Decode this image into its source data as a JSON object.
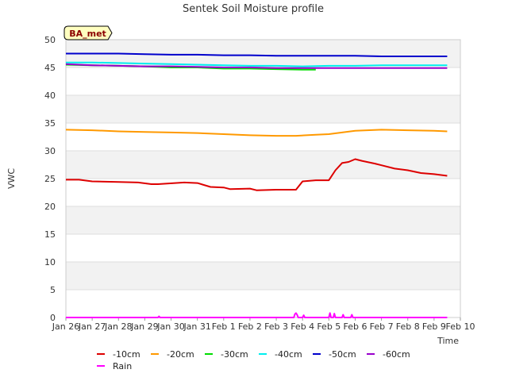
{
  "chart_data": {
    "type": "line",
    "title": "Sentek Soil Moisture profile",
    "badge": "BA_met",
    "xlabel": "Time",
    "ylabel": "VWC",
    "ylim": [
      0,
      50
    ],
    "yticks": [
      0,
      5,
      10,
      15,
      20,
      25,
      30,
      35,
      40,
      45,
      50
    ],
    "xlim": [
      "2024-01-26",
      "2024-02-10"
    ],
    "xtick_labels": [
      "Jan 26",
      "Jan 27",
      "Jan 28",
      "Jan 29",
      "Jan 30",
      "Jan 31",
      "Feb 1",
      "Feb 2",
      "Feb 3",
      "Feb 4",
      "Feb 5",
      "Feb 6",
      "Feb 7",
      "Feb 8",
      "Feb 9",
      "Feb 10"
    ],
    "grid": true,
    "legend_position": "bottom",
    "series": [
      {
        "name": "-10cm",
        "color": "#dd0000",
        "x": [
          "2024-01-26",
          "2024-01-26 12:00",
          "2024-01-27",
          "2024-01-28",
          "2024-01-28 18:00",
          "2024-01-29 06:00",
          "2024-01-29 12:00",
          "2024-01-30 12:00",
          "2024-01-31",
          "2024-01-31 12:00",
          "2024-02-01",
          "2024-02-01 06:00",
          "2024-02-02",
          "2024-02-02 06:00",
          "2024-02-03",
          "2024-02-03 18:00",
          "2024-02-04",
          "2024-02-04 12:00",
          "2024-02-05",
          "2024-02-05 06:00",
          "2024-02-05 12:00",
          "2024-02-05 18:00",
          "2024-02-06",
          "2024-02-06 06:00",
          "2024-02-06 18:00",
          "2024-02-07",
          "2024-02-07 12:00",
          "2024-02-08",
          "2024-02-08 12:00",
          "2024-02-09",
          "2024-02-09 12:00"
        ],
        "y": [
          24.8,
          24.8,
          24.5,
          24.4,
          24.3,
          24.0,
          24.0,
          24.3,
          24.2,
          23.5,
          23.4,
          23.1,
          23.2,
          22.9,
          23.0,
          23.0,
          24.5,
          24.7,
          24.7,
          26.5,
          27.8,
          28.0,
          28.5,
          28.2,
          27.7,
          27.4,
          26.8,
          26.5,
          26.0,
          25.8,
          25.5
        ]
      },
      {
        "name": "-20cm",
        "color": "#ff9900",
        "x": [
          "2024-01-26",
          "2024-01-27",
          "2024-01-28",
          "2024-01-29",
          "2024-01-30",
          "2024-01-31",
          "2024-02-01",
          "2024-02-02",
          "2024-02-03",
          "2024-02-03 18:00",
          "2024-02-04 12:00",
          "2024-02-05",
          "2024-02-05 12:00",
          "2024-02-06",
          "2024-02-07",
          "2024-02-08",
          "2024-02-09",
          "2024-02-09 12:00"
        ],
        "y": [
          33.8,
          33.7,
          33.5,
          33.4,
          33.3,
          33.2,
          33.0,
          32.8,
          32.7,
          32.7,
          32.9,
          33.0,
          33.3,
          33.6,
          33.8,
          33.7,
          33.6,
          33.5
        ]
      },
      {
        "name": "-30cm",
        "color": "#00dd00",
        "x": [
          "2024-01-26",
          "2024-01-27",
          "2024-01-28",
          "2024-01-29",
          "2024-01-30",
          "2024-01-31",
          "2024-02-01",
          "2024-02-02",
          "2024-02-03",
          "2024-02-04",
          "2024-02-04 12:00"
        ],
        "y": [
          45.5,
          45.4,
          45.3,
          45.2,
          45.0,
          45.0,
          44.8,
          44.8,
          44.7,
          44.6,
          44.6
        ]
      },
      {
        "name": "-40cm",
        "color": "#00eeee",
        "x": [
          "2024-01-26",
          "2024-01-27",
          "2024-01-28",
          "2024-01-29",
          "2024-01-30",
          "2024-01-31",
          "2024-02-01",
          "2024-02-02",
          "2024-02-03",
          "2024-02-04",
          "2024-02-05",
          "2024-02-06",
          "2024-02-07",
          "2024-02-08",
          "2024-02-09",
          "2024-02-09 12:00"
        ],
        "y": [
          45.9,
          45.9,
          45.8,
          45.7,
          45.6,
          45.5,
          45.4,
          45.3,
          45.3,
          45.2,
          45.3,
          45.3,
          45.4,
          45.4,
          45.4,
          45.4
        ]
      },
      {
        "name": "-50cm",
        "color": "#0000cc",
        "x": [
          "2024-01-26",
          "2024-01-27",
          "2024-01-28",
          "2024-01-29",
          "2024-01-30",
          "2024-01-31",
          "2024-02-01",
          "2024-02-02",
          "2024-02-03",
          "2024-02-04",
          "2024-02-05",
          "2024-02-06",
          "2024-02-07",
          "2024-02-08",
          "2024-02-09",
          "2024-02-09 12:00"
        ],
        "y": [
          47.5,
          47.5,
          47.5,
          47.4,
          47.3,
          47.3,
          47.2,
          47.2,
          47.1,
          47.1,
          47.1,
          47.1,
          47.0,
          47.0,
          47.0,
          47.0
        ]
      },
      {
        "name": "-60cm",
        "color": "#9900cc",
        "x": [
          "2024-01-26",
          "2024-01-27",
          "2024-01-28",
          "2024-01-29",
          "2024-01-30",
          "2024-01-31",
          "2024-02-01",
          "2024-02-02",
          "2024-02-03",
          "2024-02-04",
          "2024-02-05",
          "2024-02-06",
          "2024-02-07",
          "2024-02-08",
          "2024-02-09",
          "2024-02-09 12:00"
        ],
        "y": [
          45.6,
          45.4,
          45.3,
          45.2,
          45.2,
          45.1,
          45.0,
          45.0,
          44.9,
          44.9,
          44.9,
          44.9,
          44.9,
          44.9,
          44.9,
          44.9
        ]
      },
      {
        "name": "Rain",
        "color": "#ff00ff",
        "x": [
          "2024-01-26",
          "2024-01-29 12:00",
          "2024-01-29 13:00",
          "2024-01-29 14:00",
          "2024-02-03 16:00",
          "2024-02-03 17:00",
          "2024-02-03 18:00",
          "2024-02-03 19:00",
          "2024-02-03 20:00",
          "2024-02-04",
          "2024-02-04 01:00",
          "2024-02-04 02:00",
          "2024-02-05",
          "2024-02-05 01:00",
          "2024-02-05 02:00",
          "2024-02-05 04:00",
          "2024-02-05 05:00",
          "2024-02-05 06:00",
          "2024-02-05 12:00",
          "2024-02-05 13:00",
          "2024-02-05 14:00",
          "2024-02-05 20:00",
          "2024-02-05 21:00",
          "2024-02-05 22:00",
          "2024-02-09 12:00"
        ],
        "y": [
          0,
          0,
          0.2,
          0,
          0,
          0.6,
          0.8,
          0.5,
          0,
          0,
          0.4,
          0,
          0,
          0.8,
          0,
          0,
          0.7,
          0,
          0,
          0.5,
          0,
          0,
          0.5,
          0,
          0
        ]
      }
    ]
  }
}
